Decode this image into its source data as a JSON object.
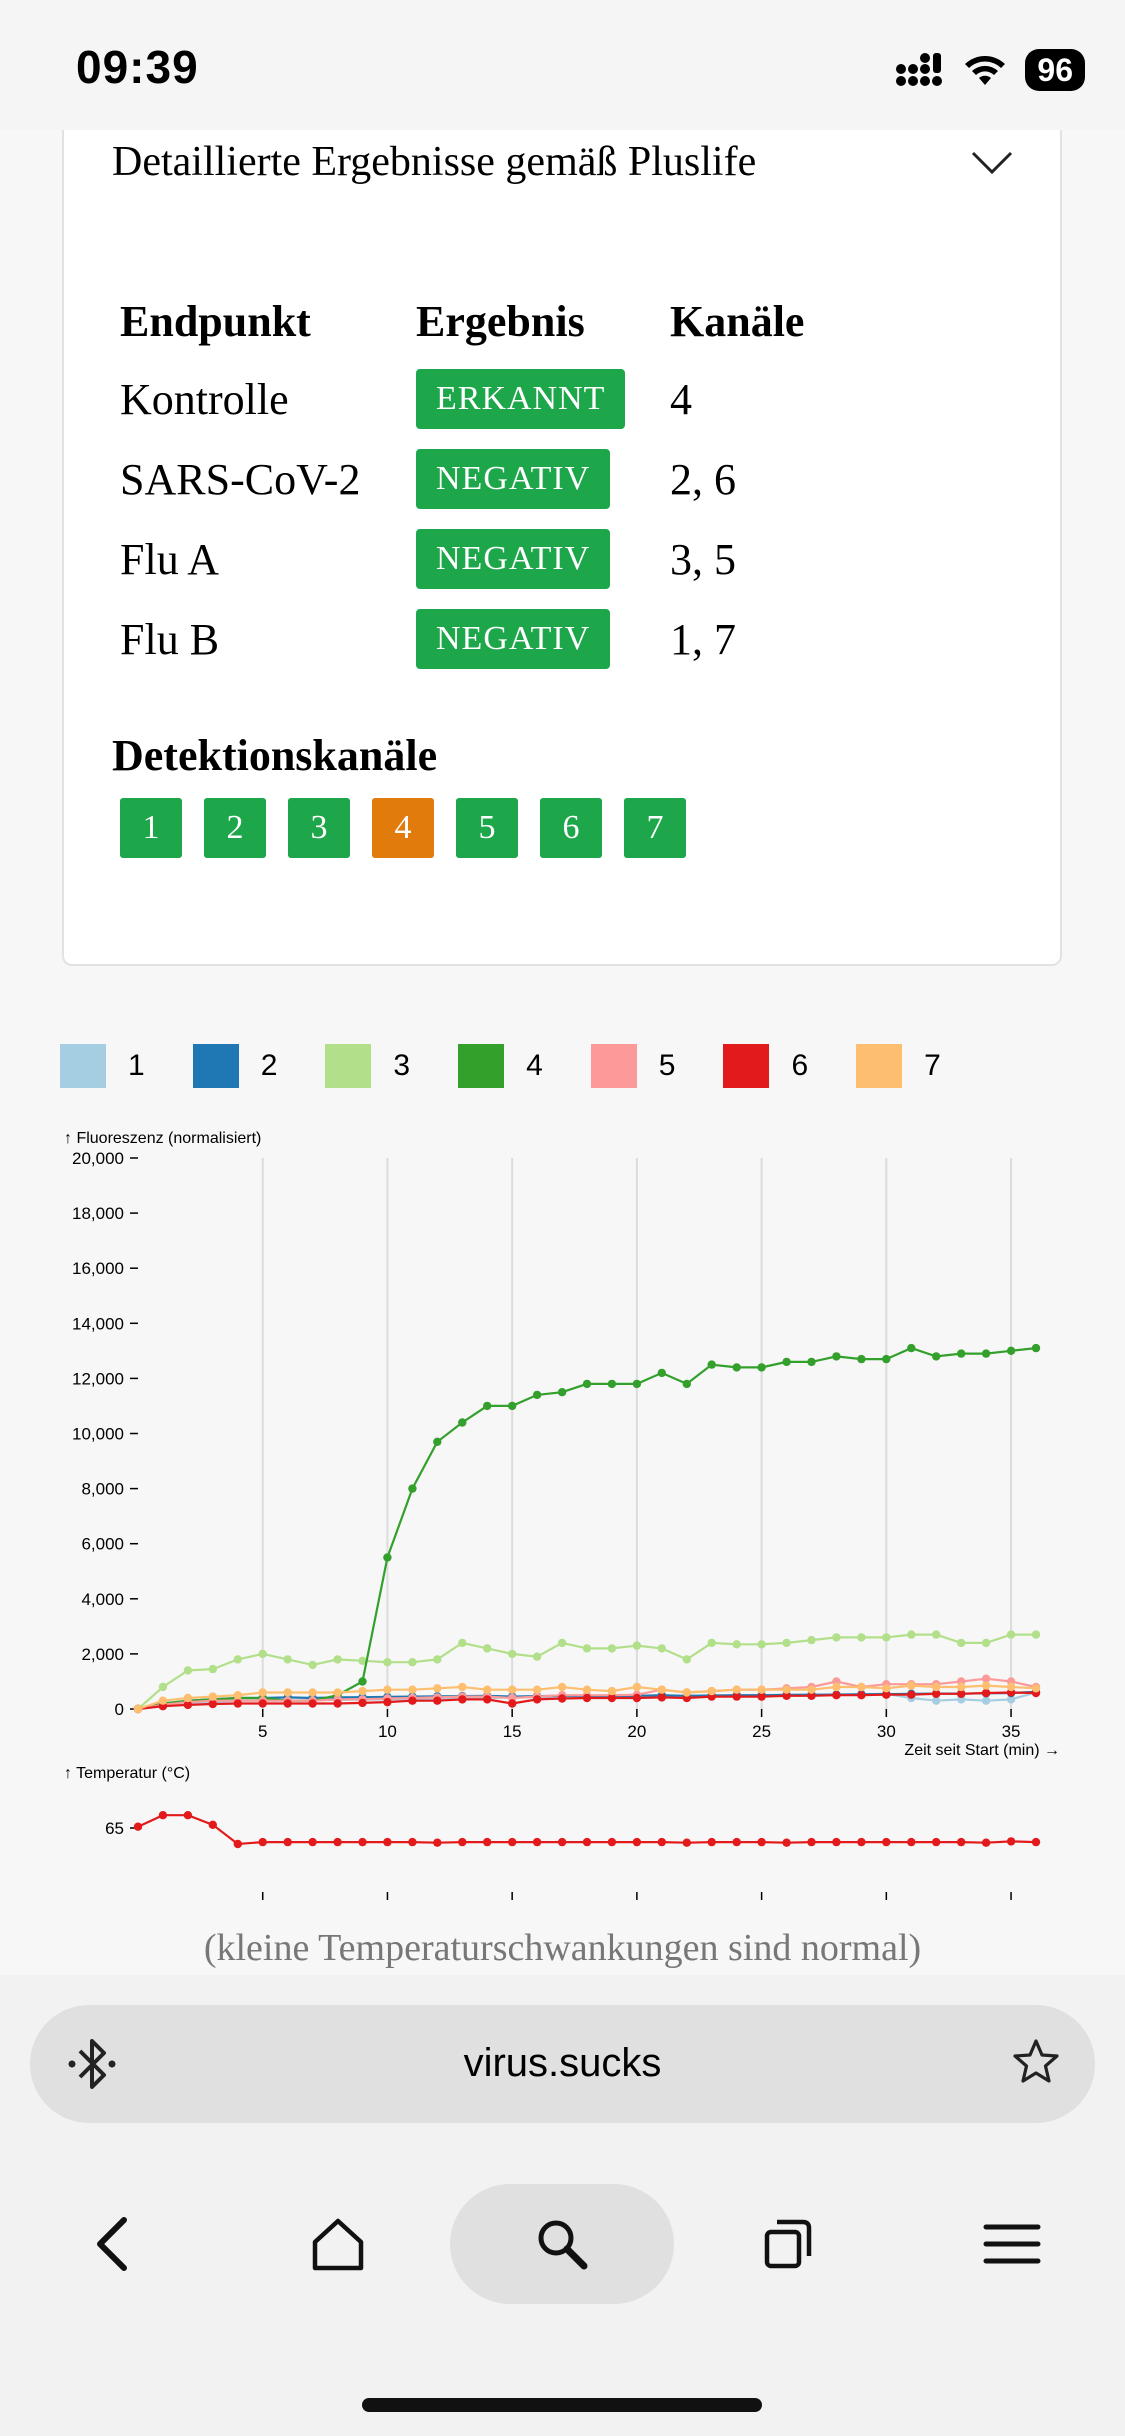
{
  "status": {
    "time": "09:39",
    "battery": "96"
  },
  "card": {
    "title": "Detaillierte Ergebnisse gemäß Pluslife",
    "headers": {
      "endpoint": "Endpunkt",
      "result": "Ergebnis",
      "channels": "Kanäle"
    },
    "rows": [
      {
        "endpoint": "Kontrolle",
        "result": "ERKANNT",
        "channels": "4"
      },
      {
        "endpoint": "SARS-CoV-2",
        "result": "NEGATIV",
        "channels": "2, 6"
      },
      {
        "endpoint": "Flu A",
        "result": "NEGATIV",
        "channels": "3, 5"
      },
      {
        "endpoint": "Flu B",
        "result": "NEGATIV",
        "channels": "1, 7"
      }
    ],
    "detection_title": "Detektionskanäle",
    "detection_channels": [
      "1",
      "2",
      "3",
      "4",
      "5",
      "6",
      "7"
    ],
    "active_channel": "4"
  },
  "legend": [
    {
      "label": "1",
      "color": "#a6cee3"
    },
    {
      "label": "2",
      "color": "#1f78b4"
    },
    {
      "label": "3",
      "color": "#b2df8a"
    },
    {
      "label": "4",
      "color": "#33a02c"
    },
    {
      "label": "5",
      "color": "#fb9a99"
    },
    {
      "label": "6",
      "color": "#e31a1c"
    },
    {
      "label": "7",
      "color": "#fdbf6f"
    }
  ],
  "chart_data": [
    {
      "type": "line",
      "ylabel": "↑ Fluoreszenz (normalisiert)",
      "xlabel": "Zeit seit Start (min) →",
      "xlim": [
        0,
        36
      ],
      "ylim": [
        0,
        20000
      ],
      "xticks": [
        "5",
        "10",
        "15",
        "20",
        "25",
        "30",
        "35"
      ],
      "yticks": [
        "0",
        "2,000",
        "4,000",
        "6,000",
        "8,000",
        "10,000",
        "12,000",
        "14,000",
        "16,000",
        "18,000",
        "20,000"
      ],
      "grid": "vertical",
      "x": [
        0,
        1,
        2,
        3,
        4,
        5,
        6,
        7,
        8,
        9,
        10,
        11,
        12,
        13,
        14,
        15,
        16,
        17,
        18,
        19,
        20,
        21,
        22,
        23,
        24,
        25,
        26,
        27,
        28,
        29,
        30,
        31,
        32,
        33,
        34,
        35,
        36
      ],
      "series": [
        {
          "name": "1",
          "color": "#a6cee3",
          "values": [
            0,
            100,
            200,
            250,
            300,
            300,
            300,
            320,
            330,
            340,
            350,
            350,
            380,
            400,
            400,
            420,
            430,
            420,
            440,
            450,
            460,
            460,
            470,
            480,
            490,
            500,
            500,
            520,
            530,
            540,
            550,
            400,
            300,
            350,
            300,
            350,
            600
          ]
        },
        {
          "name": "2",
          "color": "#1f78b4",
          "values": [
            0,
            150,
            300,
            350,
            400,
            400,
            420,
            400,
            420,
            430,
            440,
            450,
            460,
            470,
            480,
            450,
            470,
            480,
            480,
            470,
            480,
            500,
            480,
            490,
            500,
            500,
            510,
            520,
            520,
            530,
            540,
            550,
            560,
            560,
            570,
            580,
            620
          ]
        },
        {
          "name": "3",
          "color": "#b2df8a",
          "values": [
            0,
            800,
            1400,
            1450,
            1800,
            2000,
            1800,
            1600,
            1800,
            1750,
            1700,
            1700,
            1800,
            2400,
            2200,
            2000,
            1900,
            2400,
            2200,
            2200,
            2300,
            2200,
            1800,
            2400,
            2350,
            2350,
            2400,
            2500,
            2600,
            2600,
            2600,
            2700,
            2700,
            2400,
            2400,
            2700,
            2700
          ]
        },
        {
          "name": "4",
          "color": "#33a02c",
          "values": [
            0,
            200,
            300,
            350,
            400,
            400,
            300,
            300,
            500,
            1000,
            5500,
            8000,
            9700,
            10400,
            11000,
            11000,
            11400,
            11500,
            11800,
            11800,
            11800,
            12200,
            11800,
            12500,
            12400,
            12400,
            12600,
            12600,
            12800,
            12700,
            12700,
            13100,
            12800,
            12900,
            12900,
            13000,
            13100
          ]
        },
        {
          "name": "5",
          "color": "#fb9a99",
          "values": [
            0,
            150,
            250,
            300,
            300,
            300,
            300,
            300,
            350,
            350,
            380,
            400,
            420,
            450,
            450,
            400,
            450,
            500,
            500,
            500,
            520,
            700,
            600,
            650,
            700,
            700,
            750,
            800,
            1000,
            800,
            900,
            900,
            900,
            1000,
            1100,
            1000,
            800
          ]
        },
        {
          "name": "6",
          "color": "#e31a1c",
          "values": [
            0,
            100,
            150,
            180,
            200,
            200,
            200,
            200,
            200,
            220,
            250,
            300,
            300,
            350,
            350,
            200,
            350,
            380,
            400,
            400,
            400,
            420,
            400,
            450,
            450,
            450,
            480,
            480,
            500,
            500,
            520,
            520,
            550,
            550,
            580,
            600,
            580
          ]
        },
        {
          "name": "7",
          "color": "#fdbf6f",
          "values": [
            0,
            300,
            400,
            450,
            500,
            600,
            600,
            600,
            600,
            650,
            700,
            700,
            750,
            800,
            700,
            700,
            700,
            800,
            700,
            650,
            800,
            700,
            600,
            650,
            700,
            700,
            700,
            700,
            800,
            800,
            750,
            850,
            800,
            800,
            850,
            800,
            750
          ]
        }
      ]
    },
    {
      "type": "line",
      "ylabel": "↑ Temperatur (°C)",
      "xlabel": "Zeit seit Start (min) →",
      "xlim": [
        0,
        36
      ],
      "ylim": [
        55,
        70
      ],
      "xticks": [
        "5",
        "10",
        "15",
        "20",
        "25",
        "30",
        "35"
      ],
      "yticks": [
        "65"
      ],
      "series": [
        {
          "name": "6",
          "color": "#e31a1c",
          "x": [
            0,
            1,
            2,
            3,
            4,
            5,
            6,
            7,
            8,
            9,
            10,
            11,
            12,
            13,
            14,
            15,
            16,
            17,
            18,
            19,
            20,
            21,
            22,
            23,
            24,
            25,
            26,
            27,
            28,
            29,
            30,
            31,
            32,
            33,
            34,
            35,
            36
          ],
          "values": [
            65.2,
            67,
            67,
            65.5,
            62.5,
            62.8,
            62.8,
            62.8,
            62.8,
            62.8,
            62.8,
            62.8,
            62.7,
            62.8,
            62.8,
            62.8,
            62.8,
            62.8,
            62.8,
            62.8,
            62.8,
            62.8,
            62.7,
            62.8,
            62.8,
            62.8,
            62.7,
            62.8,
            62.8,
            62.8,
            62.8,
            62.8,
            62.8,
            62.8,
            62.7,
            62.9,
            62.8
          ]
        }
      ]
    }
  ],
  "caption": "(kleine Temperaturschwankungen sind normal)",
  "browser": {
    "url": "virus.sucks"
  },
  "icons": [
    "signal-icon",
    "wifi-icon",
    "chevron-down-icon",
    "bluetooth-icon",
    "star-icon",
    "back-icon",
    "home-icon",
    "search-icon",
    "tabs-icon",
    "menu-icon"
  ]
}
